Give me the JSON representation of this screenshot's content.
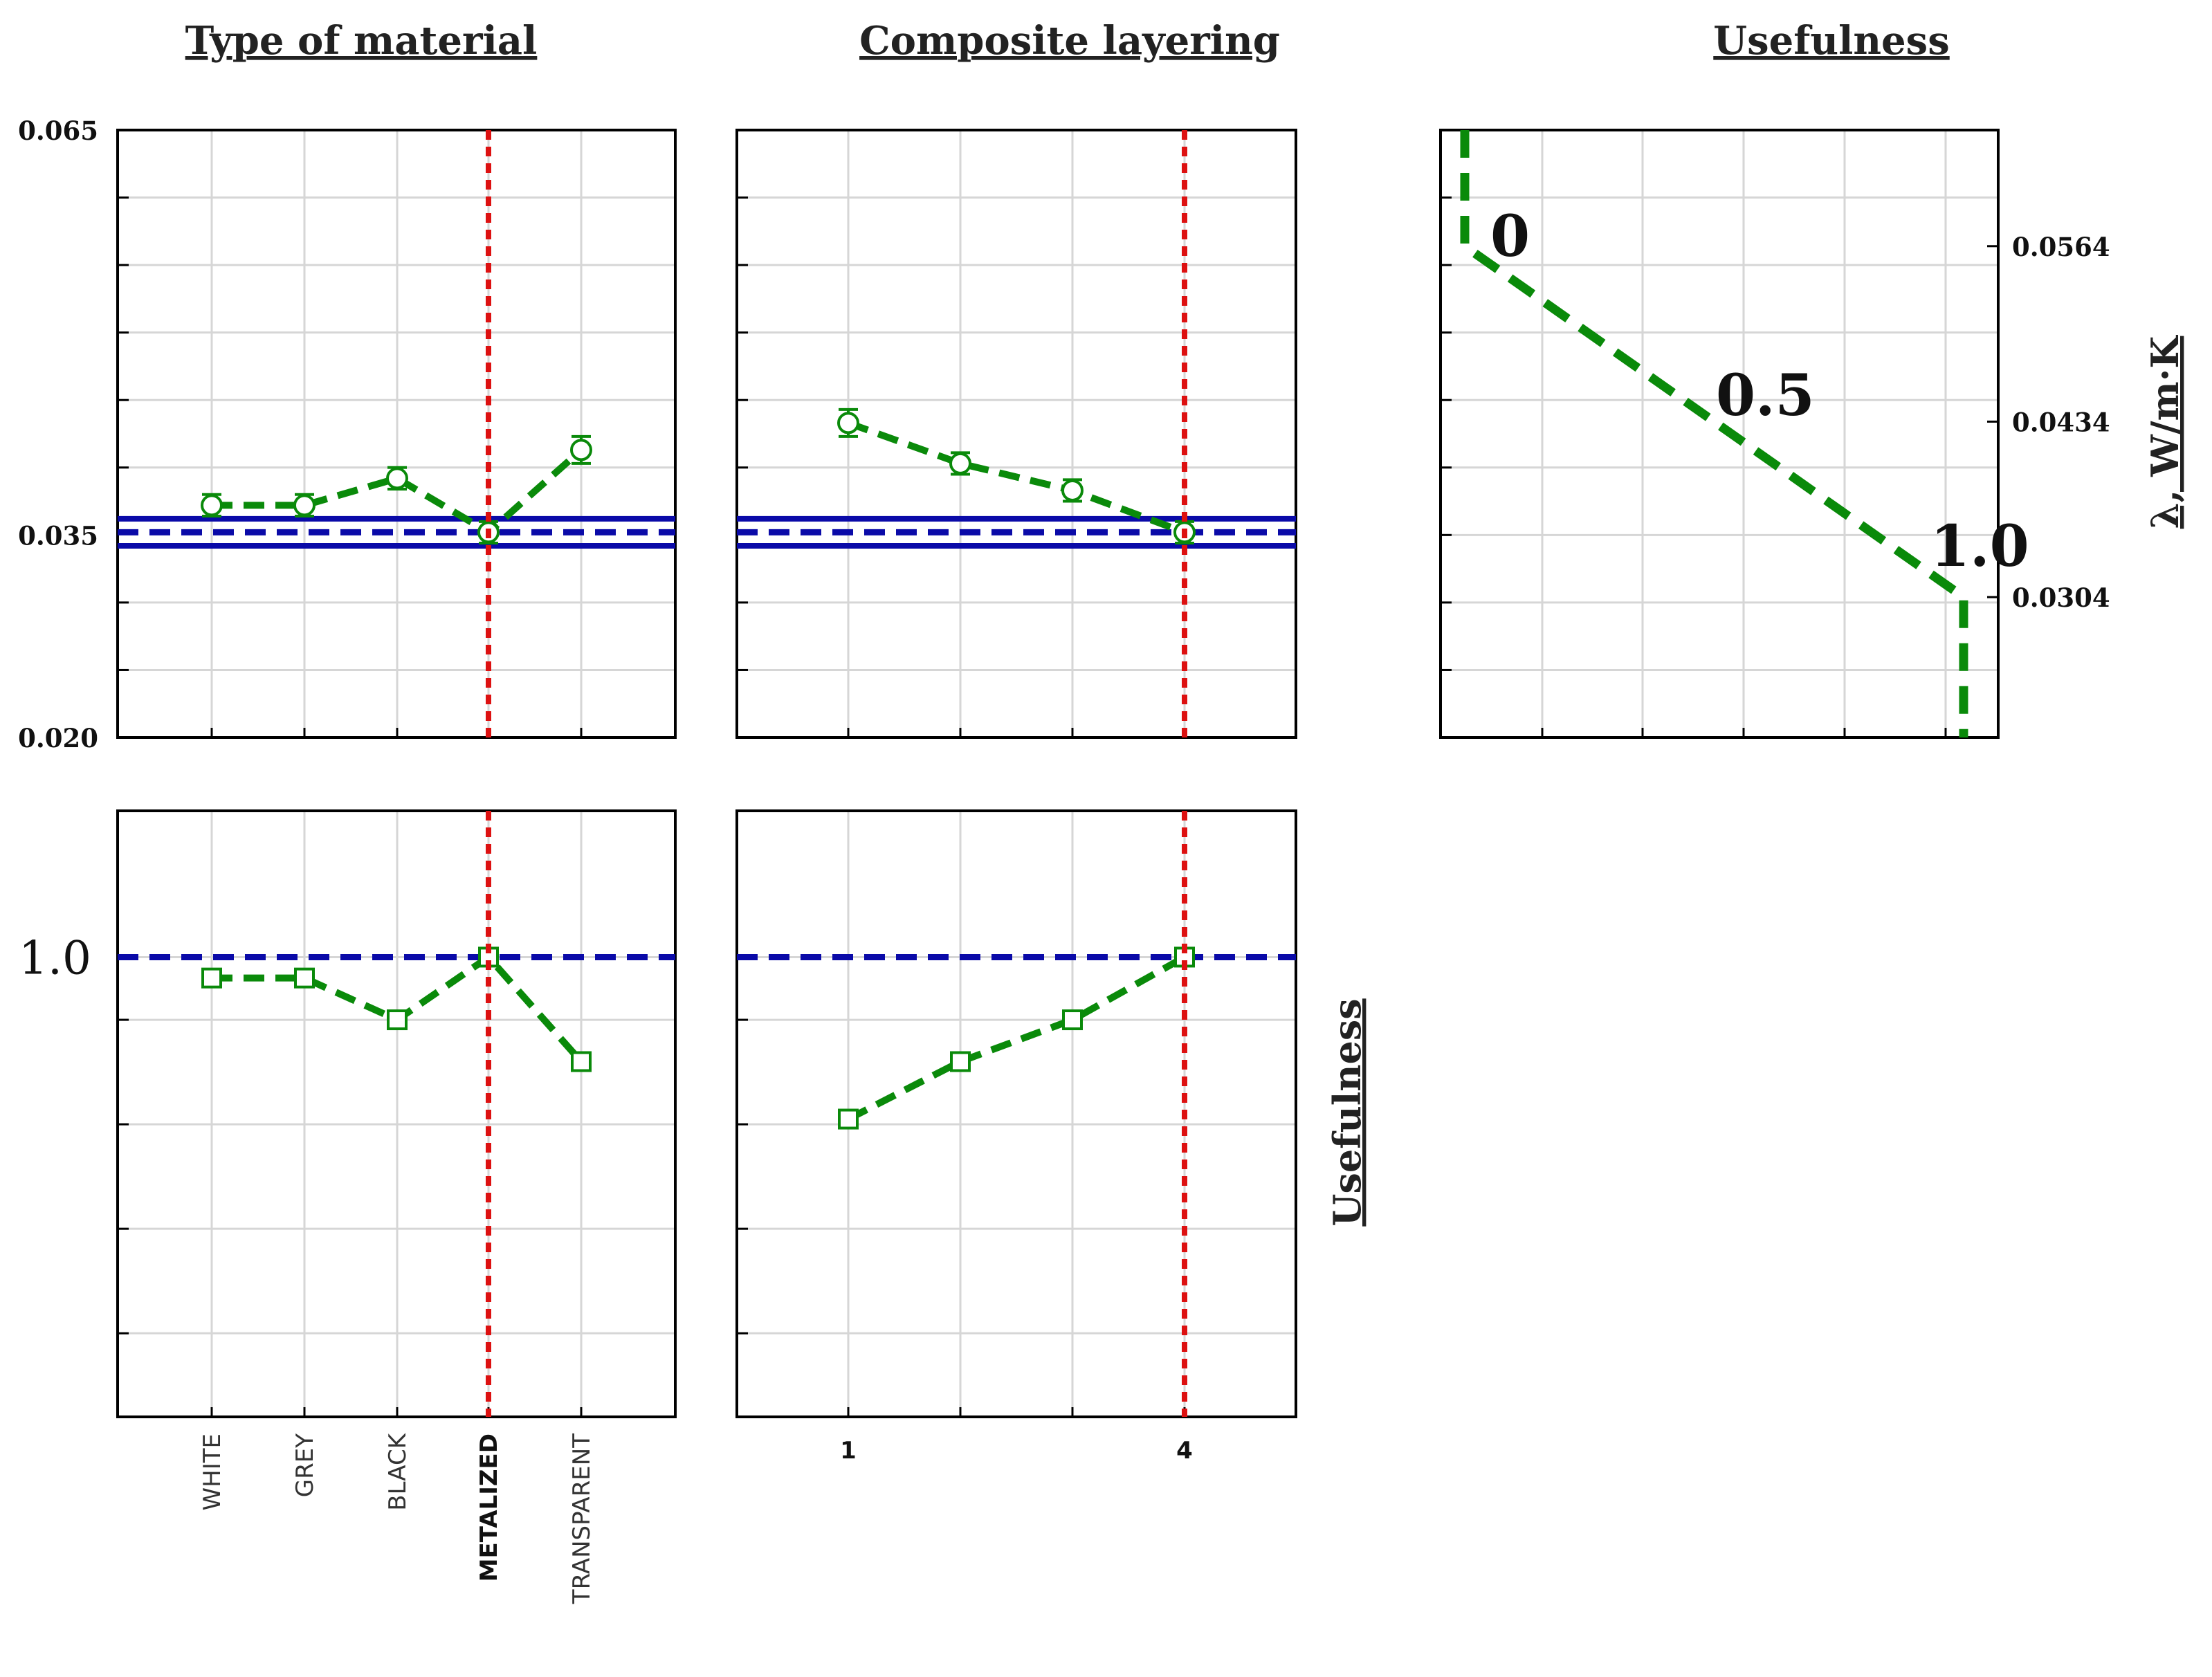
{
  "colors": {
    "series": "#0a8a0a",
    "reference": "#0a0aa8",
    "selected": "#dd1111",
    "grid": "#d6d6d6"
  },
  "chart_data": [
    {
      "id": "p11",
      "type": "line",
      "title": "Type of material",
      "categories": [
        "WHITE",
        "GREY",
        "BLACK",
        "METALIZED",
        "TRANSPARENT"
      ],
      "selected_category": "METALIZED",
      "values": [
        0.0372,
        0.0372,
        0.0392,
        0.0352,
        0.0413
      ],
      "error": [
        0.0008,
        0.0008,
        0.0008,
        0.0008,
        0.001
      ],
      "marker": "circle",
      "reference_line": 0.0352,
      "band": [
        0.0362,
        0.0342
      ],
      "ylim": [
        0.02,
        0.065
      ],
      "yticks": [
        "0.065",
        "0.035",
        "0.020"
      ],
      "ytick_values": [
        0.065,
        0.035,
        0.02
      ]
    },
    {
      "id": "p12",
      "type": "line",
      "title": "Composite layering",
      "x": [
        1,
        2,
        3,
        4
      ],
      "xtick_labels": [
        "1",
        "4"
      ],
      "xtick_positions": [
        1,
        4
      ],
      "selected_x": 4,
      "values": [
        0.0433,
        0.0403,
        0.0383,
        0.0352
      ],
      "error": [
        0.001,
        0.0008,
        0.0008,
        0.0008
      ],
      "marker": "circle",
      "reference_line": 0.0352,
      "band": [
        0.0362,
        0.0342
      ],
      "ylim": [
        0.02,
        0.065
      ]
    },
    {
      "id": "p13",
      "type": "line",
      "title": "Usefulness",
      "ylabel": "λ, W/m·K",
      "description": "desirability profile: usefulness vs thermal conductivity",
      "points": [
        [
          0,
          0.065
        ],
        [
          0,
          0.0564
        ],
        [
          0.5,
          0.0434
        ],
        [
          1.0,
          0.0304
        ],
        [
          1.0,
          0.02
        ]
      ],
      "point_labels": [
        "0",
        "0.5",
        "1.0"
      ],
      "point_label_values": [
        0.0564,
        0.0434,
        0.0304
      ],
      "yticks_right": [
        "0.0564",
        "0.0434",
        "0.0304"
      ],
      "ytick_values": [
        0.0564,
        0.0434,
        0.0304
      ],
      "ylim": [
        0.02,
        0.065
      ]
    },
    {
      "id": "p21",
      "type": "line",
      "ylabel": "Usefulness",
      "categories": [
        "WHITE",
        "GREY",
        "BLACK",
        "METALIZED",
        "TRANSPARENT"
      ],
      "selected_category": "METALIZED",
      "values": [
        0.98,
        0.98,
        0.94,
        1.0,
        0.9
      ],
      "marker": "square",
      "reference_line": 1.0,
      "ylim": [
        0.56,
        1.14
      ],
      "yticks": [
        "1.0"
      ],
      "ytick_values": [
        1.0
      ]
    },
    {
      "id": "p22",
      "type": "line",
      "x": [
        1,
        2,
        3,
        4
      ],
      "xtick_labels": [
        "1",
        "4"
      ],
      "xtick_positions": [
        1,
        4
      ],
      "selected_x": 4,
      "values": [
        0.845,
        0.9,
        0.94,
        1.0
      ],
      "marker": "square",
      "reference_line": 1.0,
      "ylim": [
        0.56,
        1.14
      ]
    }
  ]
}
